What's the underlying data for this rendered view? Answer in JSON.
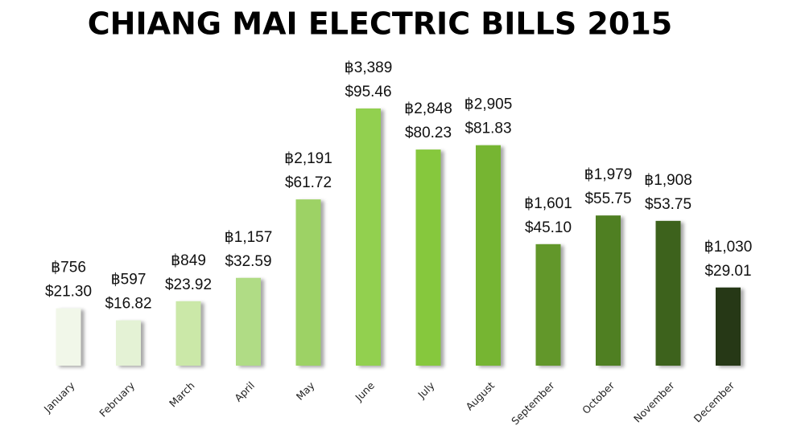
{
  "chart_data": {
    "type": "bar",
    "title": "CHIANG MAI ELECTRIC BILLS 2015",
    "categories": [
      "January",
      "February",
      "March",
      "April",
      "May",
      "June",
      "July",
      "August",
      "September",
      "October",
      "November",
      "December"
    ],
    "values": [
      756,
      597,
      849,
      1157,
      2191,
      3389,
      2848,
      2905,
      1601,
      1979,
      1908,
      1030
    ],
    "value_labels": [
      "฿756",
      "฿597",
      "฿849",
      "฿1,157",
      "฿2,191",
      "฿3,389",
      "฿2,848",
      "฿2,905",
      "฿1,601",
      "฿1,979",
      "฿1,908",
      "฿1,030"
    ],
    "values_usd": [
      21.3,
      16.82,
      23.92,
      32.59,
      61.72,
      95.46,
      80.23,
      81.83,
      45.1,
      55.75,
      53.75,
      29.01
    ],
    "value_labels_usd": [
      "$21.30",
      "$16.82",
      "$23.92",
      "$32.59",
      "$61.72",
      "$95.46",
      "$80.23",
      "$81.83",
      "$45.10",
      "$55.75",
      "$53.75",
      "$29.01"
    ],
    "colors": [
      "#f1f7e9",
      "#e4f2d5",
      "#cbe8a8",
      "#b0dc85",
      "#9dd265",
      "#92d04f",
      "#86c83c",
      "#76b531",
      "#62972a",
      "#507f22",
      "#3d621b",
      "#263912"
    ]
  }
}
